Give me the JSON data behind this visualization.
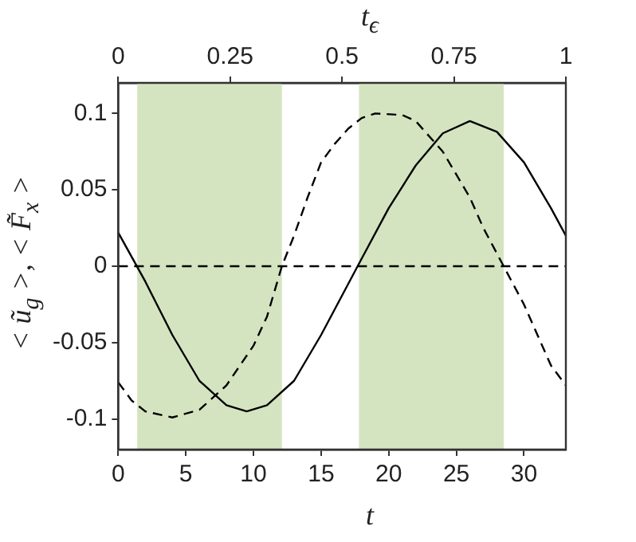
{
  "chart_data": {
    "type": "line",
    "xlabel": "t",
    "ylabel": "< ũ$_{g}$ >, < F̃$_{x}$ >",
    "x2label": "t$_{ϵ}$",
    "xlim": [
      0,
      33.1
    ],
    "xticks": [
      0,
      5,
      10,
      15,
      20,
      25,
      30
    ],
    "x2lim": [
      0,
      1
    ],
    "x2ticks": [
      0,
      0.25,
      0.5,
      0.75,
      1
    ],
    "ylim": [
      -0.12,
      0.12
    ],
    "yticks": [
      -0.1,
      -0.05,
      0,
      0.05,
      0.1
    ],
    "grid": false,
    "legend": false,
    "marker": "none",
    "series": [
      {
        "color": "#000000",
        "line_style": "solid",
        "x": [
          0,
          2,
          4,
          6,
          8,
          9.5,
          11,
          13,
          15,
          17.7,
          20,
          22,
          24,
          26,
          28,
          30,
          32,
          33.1
        ],
        "values": [
          0.022,
          -0.01,
          -0.045,
          -0.075,
          -0.091,
          -0.095,
          -0.091,
          -0.075,
          -0.045,
          0,
          0.038,
          0.066,
          0.087,
          0.095,
          0.088,
          0.068,
          0.038,
          0.02
        ]
      },
      {
        "color": "#000000",
        "line_style": "dashed",
        "x": [
          0,
          1,
          2,
          4,
          6,
          8,
          10,
          11,
          12.1,
          13,
          14,
          15,
          16,
          17,
          18,
          19,
          21,
          22,
          24,
          26,
          27,
          28.5,
          30,
          31,
          32,
          33.1
        ],
        "values": [
          -0.076,
          -0.088,
          -0.095,
          -0.099,
          -0.094,
          -0.078,
          -0.052,
          -0.033,
          0,
          0.02,
          0.045,
          0.068,
          0.08,
          0.09,
          0.097,
          0.1,
          0.099,
          0.095,
          0.075,
          0.045,
          0.025,
          0,
          -0.025,
          -0.045,
          -0.065,
          -0.078
        ]
      }
    ],
    "ref_lines": [
      {
        "axis": "y",
        "value": 0,
        "color": "#000000",
        "line_style": "dashed"
      }
    ],
    "bands": [
      {
        "axis": "x",
        "from": 1.4,
        "to": 12.1,
        "color": "#d5e4c0"
      },
      {
        "axis": "x",
        "from": 17.8,
        "to": 28.5,
        "color": "#d5e4c0"
      }
    ]
  }
}
